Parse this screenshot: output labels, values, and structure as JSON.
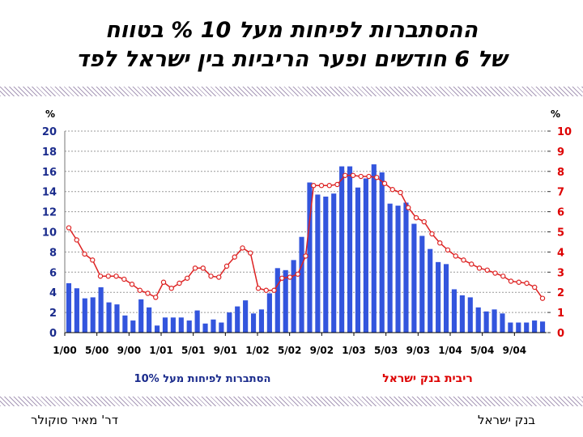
{
  "slide": {
    "title_line1": "ההסתברות לפיחות  מעל  10 % בטווח",
    "title_line2": "של 6 חודשים ופער הריביות בין ישראל לפד",
    "footer_left": "דר' מאיר סוקולר",
    "footer_right": "בנק ישראל"
  },
  "chart_data": {
    "type": "bar",
    "left_unit": "%",
    "right_unit": "%",
    "left_ticks": [
      "20",
      "18",
      "16",
      "14",
      "12",
      "10",
      "8",
      "6",
      "4",
      "2",
      "0"
    ],
    "right_ticks": [
      "10",
      "9",
      "8",
      "7",
      "6",
      "5",
      "4",
      "3",
      "2",
      "1",
      "0"
    ],
    "ylim_left": [
      0,
      20
    ],
    "ylim_right": [
      0,
      10
    ],
    "x_tick_labels": [
      "1/00",
      "5/00",
      "9/00",
      "1/01",
      "5/01",
      "9/01",
      "1/02",
      "5/02",
      "9/02",
      "1/03",
      "5/03",
      "9/03",
      "1/04",
      "5/04",
      "9/04"
    ],
    "x_tick_indices": [
      0,
      4,
      8,
      12,
      16,
      20,
      24,
      28,
      32,
      36,
      40,
      44,
      48,
      52,
      56
    ],
    "legend_bars": "הסתברות לפיחות מעל 10%",
    "legend_line": "ריבית בנק ישראל",
    "colors": {
      "bars": "#3355dd",
      "line": "#dd2222",
      "left_axis": "#1a2b8c",
      "right_axis": "#dd0000",
      "grid": "#999999"
    },
    "bar_series": {
      "axis": "left",
      "values": [
        4.9,
        4.4,
        3.4,
        3.5,
        4.5,
        3.0,
        2.8,
        1.7,
        1.2,
        3.3,
        2.5,
        0.7,
        1.5,
        1.5,
        1.5,
        1.2,
        2.2,
        0.9,
        1.3,
        1.0,
        2.0,
        2.6,
        3.2,
        1.9,
        2.3,
        3.9,
        6.4,
        6.2,
        7.2,
        9.5,
        14.9,
        13.7,
        13.5,
        13.8,
        16.5,
        16.5,
        14.4,
        15.3,
        16.7,
        15.9,
        12.8,
        12.6,
        12.9,
        10.8,
        9.6,
        8.3,
        7.0,
        6.8,
        4.3,
        3.7,
        3.5,
        2.5,
        2.1,
        2.3,
        1.9,
        1.0,
        1.0,
        1.0,
        1.2,
        1.1
      ]
    },
    "line_series": {
      "axis": "right",
      "values": [
        5.2,
        4.6,
        3.9,
        3.6,
        2.8,
        2.8,
        2.8,
        2.65,
        2.4,
        2.1,
        1.95,
        1.75,
        2.5,
        2.2,
        2.45,
        2.7,
        3.2,
        3.2,
        2.8,
        2.75,
        3.3,
        3.75,
        4.2,
        3.95,
        2.2,
        2.1,
        2.1,
        2.7,
        2.75,
        2.9,
        3.8,
        7.3,
        7.3,
        7.3,
        7.35,
        7.8,
        7.8,
        7.75,
        7.75,
        7.7,
        7.4,
        7.1,
        6.95,
        6.2,
        5.7,
        5.5,
        4.9,
        4.45,
        4.1,
        3.8,
        3.6,
        3.4,
        3.2,
        3.1,
        2.95,
        2.8,
        2.55,
        2.5,
        2.45,
        2.25,
        1.7
      ]
    }
  }
}
